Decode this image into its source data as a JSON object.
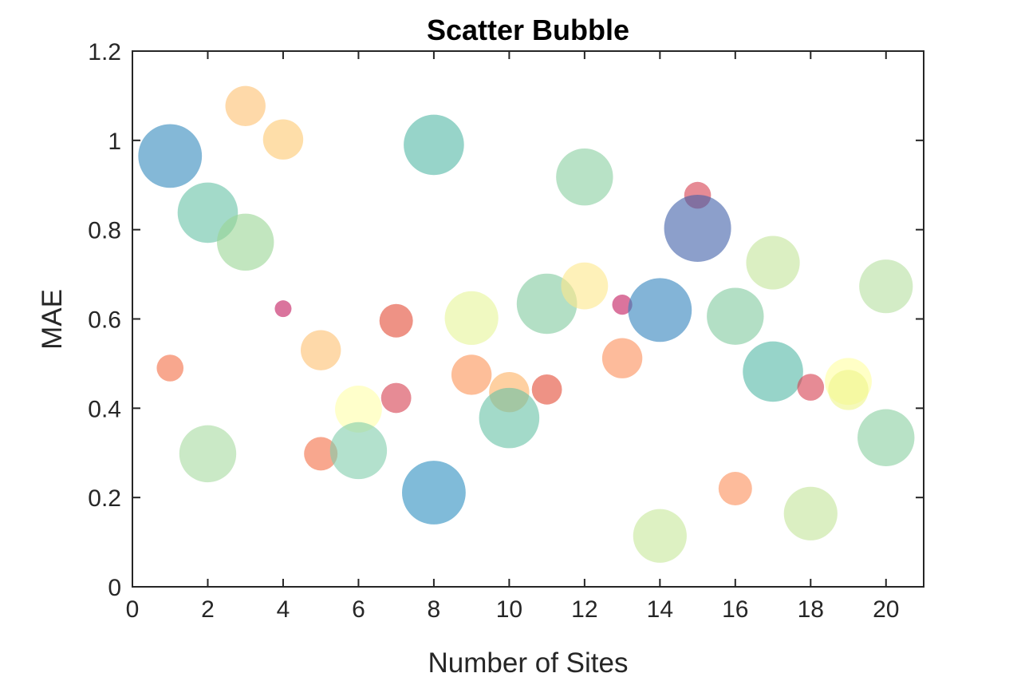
{
  "chart_data": {
    "type": "scatter",
    "title": "Scatter Bubble",
    "xlabel": "Number of Sites",
    "ylabel": "MAE",
    "xlim": [
      0,
      21
    ],
    "ylim": [
      0,
      1.2
    ],
    "xticks": [
      0,
      2,
      4,
      6,
      8,
      10,
      12,
      14,
      16,
      18,
      20
    ],
    "yticks": [
      0,
      0.2,
      0.4,
      0.6,
      0.8,
      1,
      1.2
    ],
    "xtick_labels": [
      "0",
      "2",
      "4",
      "6",
      "8",
      "10",
      "12",
      "14",
      "16",
      "18",
      "20"
    ],
    "ytick_labels": [
      "0",
      "0.2",
      "0.4",
      "0.6",
      "0.8",
      "1",
      "1.2"
    ],
    "grid": false,
    "bubble_opacity": 0.6,
    "points": [
      {
        "x": 1,
        "y": 0.965,
        "size": 0.95,
        "color": "#3288bd"
      },
      {
        "x": 1,
        "y": 0.49,
        "size": 0.4,
        "color": "#f46d43"
      },
      {
        "x": 2,
        "y": 0.838,
        "size": 0.9,
        "color": "#66c2a5"
      },
      {
        "x": 2,
        "y": 0.298,
        "size": 0.85,
        "color": "#a6dba0"
      },
      {
        "x": 3,
        "y": 1.077,
        "size": 0.6,
        "color": "#fdbf6f"
      },
      {
        "x": 3,
        "y": 0.772,
        "size": 0.85,
        "color": "#99d594"
      },
      {
        "x": 4,
        "y": 1.002,
        "size": 0.6,
        "color": "#fdc86f"
      },
      {
        "x": 4,
        "y": 0.623,
        "size": 0.25,
        "color": "#c2185b"
      },
      {
        "x": 5,
        "y": 0.53,
        "size": 0.6,
        "color": "#fdbf6f"
      },
      {
        "x": 5,
        "y": 0.298,
        "size": 0.5,
        "color": "#f46d43"
      },
      {
        "x": 6,
        "y": 0.398,
        "size": 0.7,
        "color": "#ffffa8"
      },
      {
        "x": 6,
        "y": 0.305,
        "size": 0.85,
        "color": "#80cdab"
      },
      {
        "x": 7,
        "y": 0.596,
        "size": 0.5,
        "color": "#e34a33"
      },
      {
        "x": 7,
        "y": 0.423,
        "size": 0.45,
        "color": "#d53e4f"
      },
      {
        "x": 8,
        "y": 0.99,
        "size": 0.9,
        "color": "#52b8a5"
      },
      {
        "x": 8,
        "y": 0.211,
        "size": 0.95,
        "color": "#2c8dbf"
      },
      {
        "x": 9,
        "y": 0.602,
        "size": 0.8,
        "color": "#e6f598"
      },
      {
        "x": 9,
        "y": 0.475,
        "size": 0.6,
        "color": "#fc9355"
      },
      {
        "x": 10,
        "y": 0.436,
        "size": 0.6,
        "color": "#fdb163"
      },
      {
        "x": 10,
        "y": 0.378,
        "size": 0.9,
        "color": "#66c2a5"
      },
      {
        "x": 11,
        "y": 0.634,
        "size": 0.9,
        "color": "#80c99e"
      },
      {
        "x": 11,
        "y": 0.442,
        "size": 0.45,
        "color": "#e34a33"
      },
      {
        "x": 12,
        "y": 0.918,
        "size": 0.85,
        "color": "#88cfa0"
      },
      {
        "x": 12,
        "y": 0.674,
        "size": 0.7,
        "color": "#fee88b"
      },
      {
        "x": 13,
        "y": 0.632,
        "size": 0.3,
        "color": "#c2185b"
      },
      {
        "x": 13,
        "y": 0.512,
        "size": 0.6,
        "color": "#fc8d59"
      },
      {
        "x": 14,
        "y": 0.62,
        "size": 0.95,
        "color": "#3182bd"
      },
      {
        "x": 14,
        "y": 0.114,
        "size": 0.8,
        "color": "#c7e89a"
      },
      {
        "x": 15,
        "y": 0.877,
        "size": 0.4,
        "color": "#d53e4f"
      },
      {
        "x": 15,
        "y": 0.803,
        "size": 1.0,
        "color": "#3f5fa8"
      },
      {
        "x": 16,
        "y": 0.606,
        "size": 0.85,
        "color": "#80c99e"
      },
      {
        "x": 16,
        "y": 0.22,
        "size": 0.5,
        "color": "#fc8d59"
      },
      {
        "x": 17,
        "y": 0.726,
        "size": 0.8,
        "color": "#c3e59a"
      },
      {
        "x": 17,
        "y": 0.482,
        "size": 0.9,
        "color": "#52b8a5"
      },
      {
        "x": 18,
        "y": 0.447,
        "size": 0.4,
        "color": "#d53e4f"
      },
      {
        "x": 18,
        "y": 0.164,
        "size": 0.8,
        "color": "#c3e59a"
      },
      {
        "x": 19,
        "y": 0.46,
        "size": 0.7,
        "color": "#ffffa0"
      },
      {
        "x": 19,
        "y": 0.441,
        "size": 0.6,
        "color": "#eef58a"
      },
      {
        "x": 20,
        "y": 0.673,
        "size": 0.8,
        "color": "#b5e0a0"
      },
      {
        "x": 20,
        "y": 0.334,
        "size": 0.85,
        "color": "#88cfa0"
      }
    ]
  }
}
